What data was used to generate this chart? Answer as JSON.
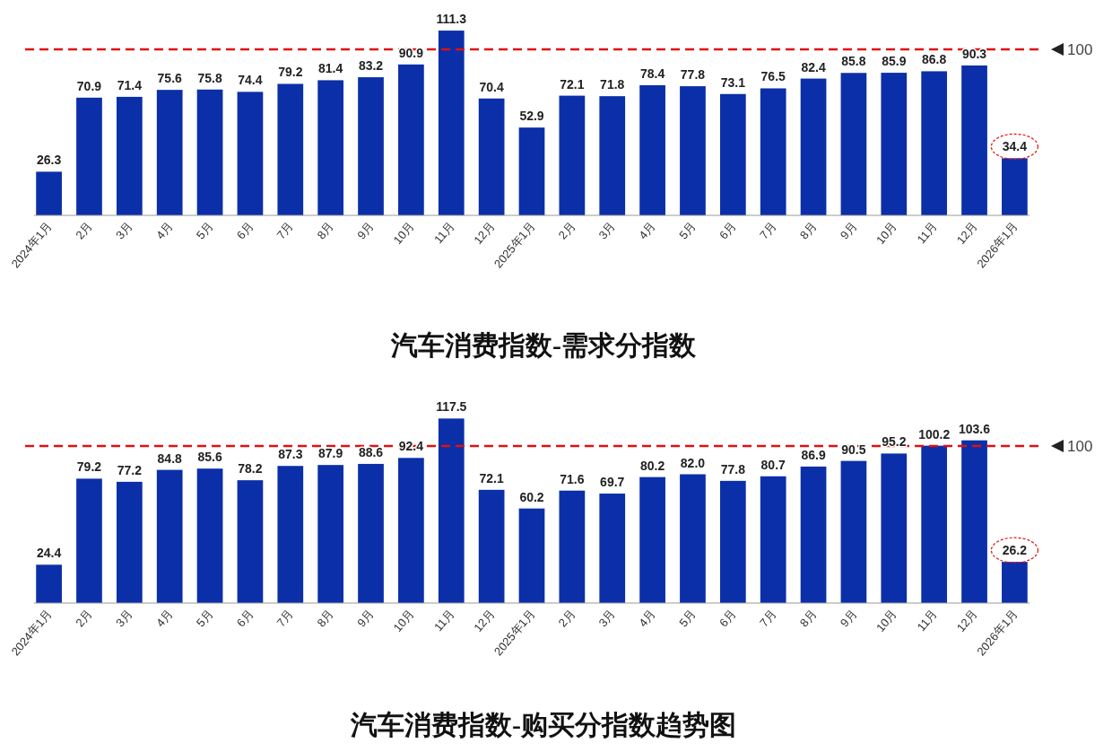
{
  "chart_data": [
    {
      "type": "bar",
      "title": "汽车消费指数-需求分指数",
      "categories": [
        "2024年1月",
        "2月",
        "3月",
        "4月",
        "5月",
        "6月",
        "7月",
        "8月",
        "9月",
        "10月",
        "11月",
        "12月",
        "2025年1月",
        "2月",
        "3月",
        "4月",
        "5月",
        "6月",
        "7月",
        "8月",
        "9月",
        "10月",
        "11月",
        "12月",
        "2026年1月"
      ],
      "values": [
        26.3,
        70.9,
        71.4,
        75.6,
        75.8,
        74.4,
        79.2,
        81.4,
        83.2,
        90.9,
        111.3,
        70.4,
        52.9,
        72.1,
        71.8,
        78.4,
        77.8,
        73.1,
        76.5,
        82.4,
        85.8,
        85.9,
        86.8,
        90.3,
        34.4
      ],
      "value_labels": [
        "26.3",
        "70.9",
        "71.4",
        "75.6",
        "75.8",
        "74.4",
        "79.2",
        "81.4",
        "83.2",
        "90.9",
        "111.3",
        "70.4",
        "52.9",
        "72.1",
        "71.8",
        "78.4",
        "77.8",
        "73.1",
        "76.5",
        "82.4",
        "85.8",
        "85.9",
        "86.8",
        "90.3",
        "34.4"
      ],
      "color": "#0b2fa8",
      "tick_labels": "x",
      "ref_lines": [
        {
          "axis": "y",
          "value": 100,
          "label": "100",
          "color": "#e01010",
          "line_style": "dashed"
        }
      ]
    },
    {
      "type": "bar",
      "title": "汽车消费指数-购买分指数趋势图",
      "categories": [
        "2024年1月",
        "2月",
        "3月",
        "4月",
        "5月",
        "6月",
        "7月",
        "8月",
        "9月",
        "10月",
        "11月",
        "12月",
        "2025年1月",
        "2月",
        "3月",
        "4月",
        "5月",
        "6月",
        "7月",
        "8月",
        "9月",
        "10月",
        "11月",
        "12月",
        "2026年1月"
      ],
      "values": [
        24.4,
        79.2,
        77.2,
        84.8,
        85.6,
        78.2,
        87.3,
        87.9,
        88.6,
        92.4,
        117.5,
        72.1,
        60.2,
        71.6,
        69.7,
        80.2,
        82.0,
        77.8,
        80.7,
        86.9,
        90.5,
        95.2,
        100.2,
        103.6,
        26.2
      ],
      "value_labels": [
        "24.4",
        "79.2",
        "77.2",
        "84.8",
        "85.6",
        "78.2",
        "87.3",
        "87.9",
        "88.6",
        "92.4",
        "117.5",
        "72.1",
        "60.2",
        "71.6",
        "69.7",
        "80.2",
        "82.0",
        "77.8",
        "80.7",
        "86.9",
        "90.5",
        "95.2",
        "100.2",
        "103.6",
        "26.2"
      ],
      "color": "#0b2fa8",
      "tick_labels": "x",
      "ref_lines": [
        {
          "axis": "y",
          "value": 100,
          "label": "100",
          "color": "#e01010",
          "line_style": "dashed"
        }
      ]
    }
  ]
}
